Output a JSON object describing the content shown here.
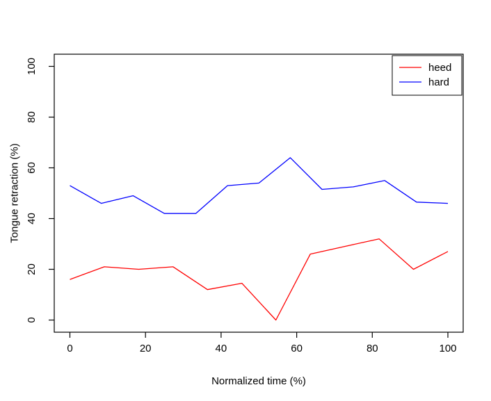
{
  "figure": {
    "background": "#ffffff",
    "frame_color": "#000000",
    "text_color": "#000000"
  },
  "chart_data": {
    "type": "line",
    "title": "",
    "xlabel": "Normalized time (%)",
    "ylabel": "Tongue retraction (%)",
    "xlim": [
      0,
      100
    ],
    "ylim": [
      0,
      100
    ],
    "xticks": [
      0,
      20,
      40,
      60,
      80,
      100
    ],
    "yticks": [
      0,
      20,
      40,
      60,
      80,
      100
    ],
    "grid": false,
    "legend": {
      "position": "top-right",
      "entries": [
        {
          "label": "heed",
          "color": "#ff0000"
        },
        {
          "label": "hard",
          "color": "#0000ff"
        }
      ]
    },
    "series": [
      {
        "name": "heed",
        "color": "#ff0000",
        "x": [
          0,
          9.1,
          18.2,
          27.3,
          36.4,
          45.5,
          54.5,
          63.6,
          72.7,
          81.8,
          90.9,
          100
        ],
        "y": [
          16,
          21,
          20,
          21,
          12,
          14.5,
          0,
          26,
          29,
          32,
          20,
          27
        ]
      },
      {
        "name": "hard",
        "color": "#0000ff",
        "x": [
          0,
          8.3,
          16.7,
          25,
          33.3,
          41.7,
          50,
          58.3,
          66.7,
          75,
          83.3,
          91.7,
          100
        ],
        "y": [
          53,
          46,
          49,
          42,
          42,
          53,
          54,
          64,
          51.5,
          52.5,
          55,
          46.5,
          46
        ]
      }
    ]
  }
}
